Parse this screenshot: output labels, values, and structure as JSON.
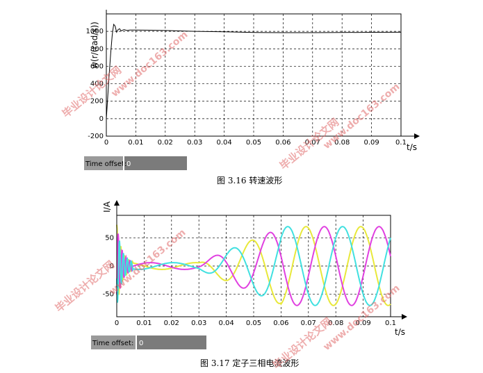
{
  "chart_data": [
    {
      "type": "line",
      "title": "",
      "xlabel": "t/s",
      "ylabel": "w(r/(rad/s))",
      "xlim": [
        0,
        0.1
      ],
      "ylim": [
        -200,
        1200
      ],
      "x_ticks": [
        "0",
        "0.01",
        "0.02",
        "0.03",
        "0.04",
        "0.05",
        "0.06",
        "0.07",
        "0.08",
        "0.09",
        "0.1"
      ],
      "y_ticks": [
        "-200",
        "0",
        "200",
        "400",
        "600",
        "800",
        "1000"
      ],
      "grid": true,
      "series": [
        {
          "color": "#000000",
          "x": [
            0,
            0.0005,
            0.001,
            0.0015,
            0.002,
            0.0025,
            0.003,
            0.0035,
            0.004,
            0.0045,
            0.005,
            0.006,
            0.007,
            0.008,
            0.01,
            0.015,
            0.02,
            0.03,
            0.04,
            0.05,
            0.06,
            0.07,
            0.08,
            0.09,
            0.1
          ],
          "values": [
            0,
            260,
            520,
            760,
            960,
            1080,
            1060,
            990,
            1020,
            1030,
            1005,
            1020,
            1010,
            1015,
            1015,
            1013,
            1010,
            1000,
            995,
            988,
            985,
            985,
            987,
            989,
            990
          ]
        }
      ],
      "time_offset": {
        "label": "Time offset:",
        "value": "0"
      },
      "caption": "图 3.16  转速波形"
    },
    {
      "type": "line",
      "title": "",
      "xlabel": "t/s",
      "ylabel": "I/A",
      "xlim": [
        0,
        0.1
      ],
      "ylim": [
        -90,
        90
      ],
      "x_ticks": [
        "0",
        "0.01",
        "0.02",
        "0.03",
        "0.04",
        "0.05",
        "0.06",
        "0.07",
        "0.08",
        "0.09",
        "0.1"
      ],
      "y_ticks": [
        "-50",
        "0",
        "50"
      ],
      "grid": true,
      "series": [
        {
          "color": "#e8e83a",
          "phase_deg": 0
        },
        {
          "color": "#e040e0",
          "phase_deg": -120
        },
        {
          "color": "#40e0e0",
          "phase_deg": 120
        }
      ],
      "time_offset": {
        "label": "Time offset:",
        "value": "0"
      },
      "caption": "图 3.17  定子三相电流波形"
    }
  ],
  "watermarks": [
    "毕业设计论文网",
    "www.doc163.com"
  ]
}
